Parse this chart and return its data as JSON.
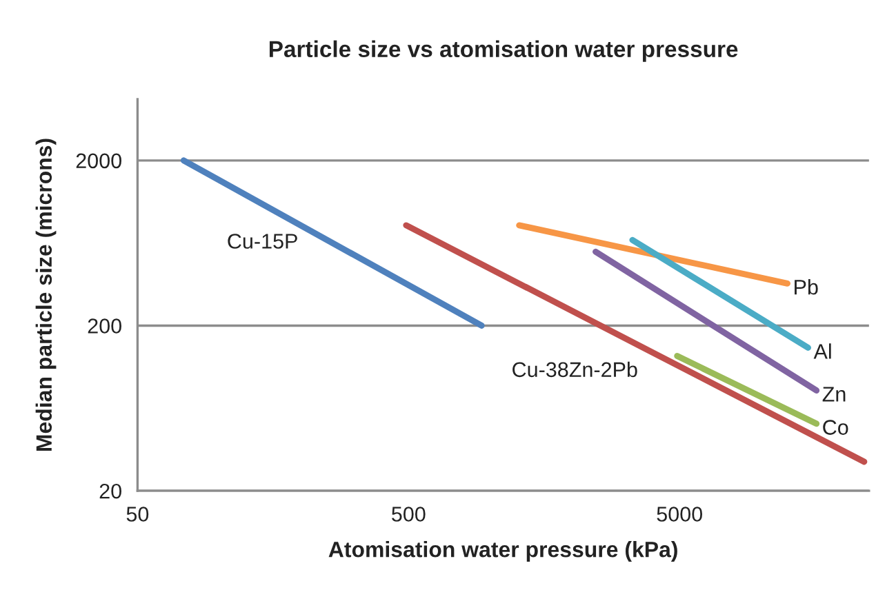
{
  "chart_data": {
    "type": "line",
    "title": "Particle size vs atomisation water pressure",
    "xlabel": "Atomisation water pressure (kPa)",
    "ylabel": "Median particle size (microns)",
    "log": "xy",
    "xlim": [
      50,
      25000
    ],
    "ylim": [
      20,
      4700
    ],
    "xticks": [
      50,
      500,
      5000
    ],
    "yticks": [
      20,
      200,
      2000
    ],
    "grid": "y",
    "legend": false,
    "marker": "none",
    "line_style": "solid",
    "series": [
      {
        "name": "Cu-15P",
        "color": "#4f81bd",
        "x": [
          74,
          930
        ],
        "values": [
          2000,
          200
        ]
      },
      {
        "name": "Cu-38Zn-2Pb",
        "color": "#c0504d",
        "x": [
          490,
          24000
        ],
        "values": [
          810,
          30
        ]
      },
      {
        "name": "Pb",
        "color": "#f79646",
        "x": [
          1280,
          12500
        ],
        "values": [
          810,
          360
        ]
      },
      {
        "name": "Al",
        "color": "#4bacc6",
        "x": [
          3350,
          14900
        ],
        "values": [
          660,
          147
        ]
      },
      {
        "name": "Zn",
        "color": "#8064a2",
        "x": [
          2450,
          16000
        ],
        "values": [
          560,
          81
        ]
      },
      {
        "name": "Co",
        "color": "#9bbb59",
        "x": [
          4900,
          16000
        ],
        "values": [
          131,
          51
        ]
      }
    ]
  }
}
